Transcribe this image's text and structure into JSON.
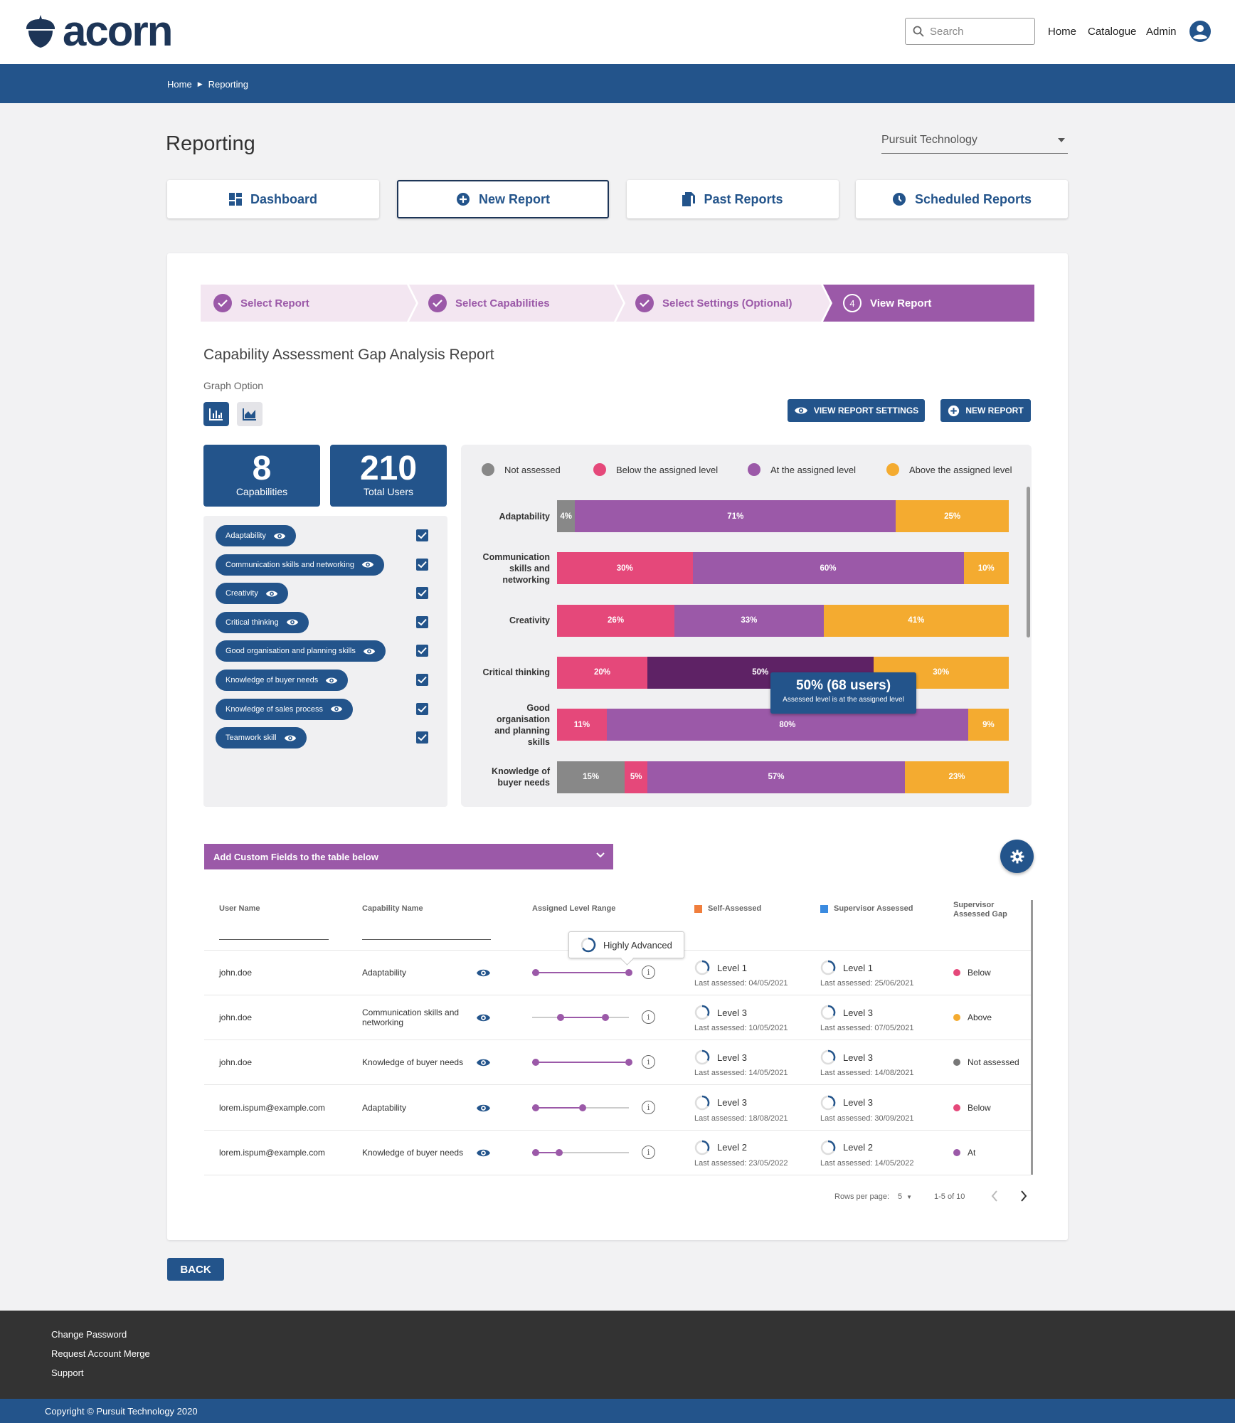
{
  "header": {
    "logo_text": "acorn",
    "search_placeholder": "Search",
    "nav": [
      "Home",
      "Catalogue",
      "Admin"
    ]
  },
  "breadcrumb": {
    "home": "Home",
    "current": "Reporting"
  },
  "page": {
    "title": "Reporting",
    "org_selected": "Pursuit Technology"
  },
  "tabs": [
    {
      "label": "Dashboard",
      "icon": "dashboard-icon"
    },
    {
      "label": "New Report",
      "icon": "add-circle-icon"
    },
    {
      "label": "Past Reports",
      "icon": "documents-icon"
    },
    {
      "label": "Scheduled Reports",
      "icon": "clock-icon"
    }
  ],
  "stepper": [
    {
      "label": "Select Report",
      "state": "done"
    },
    {
      "label": "Select Capabilities",
      "state": "done"
    },
    {
      "label": "Select Settings (Optional)",
      "state": "done"
    },
    {
      "label": "View Report",
      "state": "active",
      "number": "4"
    }
  ],
  "report": {
    "title": "Capability Assessment Gap Analysis Report",
    "graph_option_label": "Graph Option",
    "view_settings_label": "VIEW REPORT SETTINGS",
    "new_report_label": "NEW REPORT"
  },
  "stats": [
    {
      "value": "8",
      "label": "Capabilities"
    },
    {
      "value": "210",
      "label": "Total Users"
    }
  ],
  "capabilities": [
    "Adaptability",
    "Communication skills and networking",
    "Creativity",
    "Critical thinking",
    "Good organisation and planning skills",
    "Knowledge of buyer needs",
    "Knowledge of sales process",
    "Teamwork skill"
  ],
  "colors": {
    "brand": "#23548b",
    "not_assessed": "#888888",
    "below": "#e5487a",
    "at": "#9b59a8",
    "at_highlight": "#5e2265",
    "above": "#f4ab30"
  },
  "chart_data": {
    "type": "bar",
    "orientation": "horizontal-stacked-100",
    "legend": [
      "Not assessed",
      "Below the assigned level",
      "At the assigned level",
      "Above the assigned level"
    ],
    "legend_placement": "top",
    "categories": [
      "Adaptability",
      "Communication skills and networking",
      "Creativity",
      "Critical thinking",
      "Good organisation and planning skills",
      "Knowledge of buyer needs"
    ],
    "series": [
      {
        "name": "Not assessed",
        "values": [
          4,
          0,
          0,
          0,
          0,
          15
        ]
      },
      {
        "name": "Below the assigned level",
        "values": [
          0,
          30,
          26,
          20,
          11,
          5
        ]
      },
      {
        "name": "At the assigned level",
        "values": [
          71,
          60,
          33,
          50,
          80,
          57
        ]
      },
      {
        "name": "Above the assigned level",
        "values": [
          25,
          10,
          41,
          30,
          9,
          23
        ]
      }
    ],
    "highlighted": {
      "category": "Critical thinking",
      "series": "At the assigned level"
    },
    "tooltip": {
      "title": "50% (68 users)",
      "subtitle": "Assessed level is at the assigned level"
    }
  },
  "custom_fields_label": "Add Custom Fields to the table below",
  "table": {
    "headers": [
      "User Name",
      "Capability Name",
      "Assigned Level Range",
      "Self-Assessed",
      "Supervisor Assessed",
      "Supervisor Assessed Gap"
    ],
    "range_tooltip": "Highly Advanced",
    "rows": [
      {
        "user": "john.doe",
        "capability": "Adaptability",
        "range": [
          0,
          1
        ],
        "self_level": "Level 1",
        "self_date": "Last assessed: 04/05/2021",
        "sup_level": "Level 1",
        "sup_date": "Last assessed: 25/06/2021",
        "gap": "Below",
        "gap_color": "#e5487a"
      },
      {
        "user": "john.doe",
        "capability": "Communication skills and networking",
        "range": [
          0.27,
          0.75
        ],
        "self_level": "Level 3",
        "self_date": "Last assessed: 10/05/2021",
        "sup_level": "Level 3",
        "sup_date": "Last assessed: 07/05/2021",
        "gap": "Above",
        "gap_color": "#f4ab30"
      },
      {
        "user": "john.doe",
        "capability": "Knowledge of buyer needs",
        "range": [
          0,
          1
        ],
        "self_level": "Level 3",
        "self_date": "Last assessed: 14/05/2021",
        "sup_level": "Level 3",
        "sup_date": "Last assessed: 14/08/2021",
        "gap": "Not assessed",
        "gap_color": "#777777"
      },
      {
        "user": "lorem.ispum@example.com",
        "capability": "Adaptability",
        "range": [
          0,
          0.5
        ],
        "self_level": "Level 3",
        "self_date": "Last assessed: 18/08/2021",
        "sup_level": "Level 3",
        "sup_date": "Last assessed: 30/09/2021",
        "gap": "Below",
        "gap_color": "#e5487a"
      },
      {
        "user": "lorem.ispum@example.com",
        "capability": "Knowledge of buyer needs",
        "range": [
          0,
          0.25
        ],
        "self_level": "Level 2",
        "self_date": "Last assessed: 23/05/2022",
        "sup_level": "Level 2",
        "sup_date": "Last assessed: 14/05/2022",
        "gap": "At",
        "gap_color": "#9b59a8"
      }
    ],
    "pagination": {
      "rows_per_page_label": "Rows per page:",
      "rows_per_page": "5",
      "range": "1-5 of 10"
    }
  },
  "back_label": "BACK",
  "footer": {
    "links": [
      "Change Password",
      "Request Account Merge",
      "Support"
    ],
    "copyright": "Copyright © Pursuit Technology 2020"
  }
}
